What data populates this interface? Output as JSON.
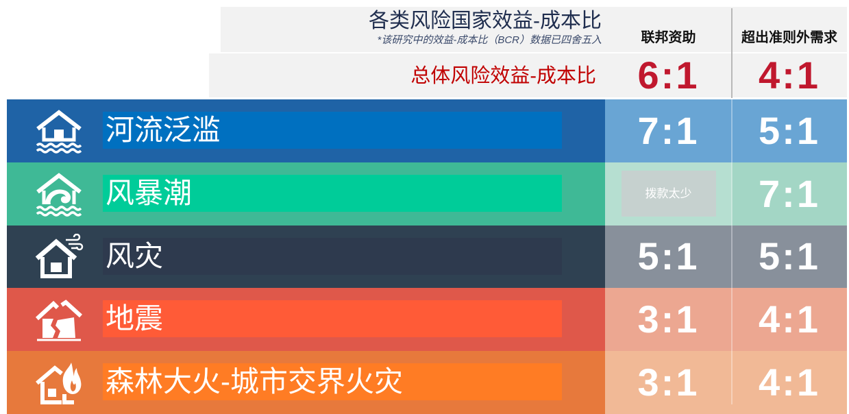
{
  "chart_data": {
    "type": "table",
    "title": "各类风险国家效益-成本比",
    "footnote": "*该研究中的效益-成本比（BCR）数据已四舍五入",
    "columns": [
      "联邦资助",
      "超出准则外需求"
    ],
    "overall": {
      "label": "总体风险效益-成本比",
      "values": [
        "6:1",
        "4:1"
      ]
    },
    "rows": [
      {
        "label": "河流泛滥",
        "icon": "flood-house-icon",
        "values": [
          "7:1",
          "5:1"
        ]
      },
      {
        "label": "风暴潮",
        "icon": "storm-surge-house-icon",
        "values": [
          "拨款太少",
          "7:1"
        ]
      },
      {
        "label": "风灾",
        "icon": "wind-house-icon",
        "values": [
          "5:1",
          "5:1"
        ]
      },
      {
        "label": "地震",
        "icon": "earthquake-house-icon",
        "values": [
          "3:1",
          "4:1"
        ]
      },
      {
        "label": "森林大火-城市交界火灾",
        "icon": "wildfire-house-icon",
        "values": [
          "3:1",
          "4:1"
        ]
      }
    ]
  },
  "theme": {
    "header_panel": "#f2f2f2",
    "title": "#1f2d4e",
    "footnote": "#3b4a6b",
    "column_header": "#111111",
    "overall_label": "#c00000",
    "overall_values": "#c0182e",
    "rows": [
      {
        "band": "#1f63a6",
        "bar": "#0070c0",
        "cells": [
          "#69a5d4",
          "#69a5d4"
        ]
      },
      {
        "band": "#3fb996",
        "bar": "#00cc99",
        "cells": [
          "#b6dfd1",
          "#a3d6c5"
        ],
        "note_box": "#c6d1cf"
      },
      {
        "band": "#2f4152",
        "bar": "#2e3a4e",
        "cells": [
          "#88909b",
          "#88909b"
        ]
      },
      {
        "band": "#df584a",
        "bar": "#ff5b37",
        "cells": [
          "#eca791",
          "#eca791"
        ]
      },
      {
        "band": "#e7793c",
        "bar": "#ff7c24",
        "cells": [
          "#f1b996",
          "#f1b996"
        ]
      }
    ]
  }
}
